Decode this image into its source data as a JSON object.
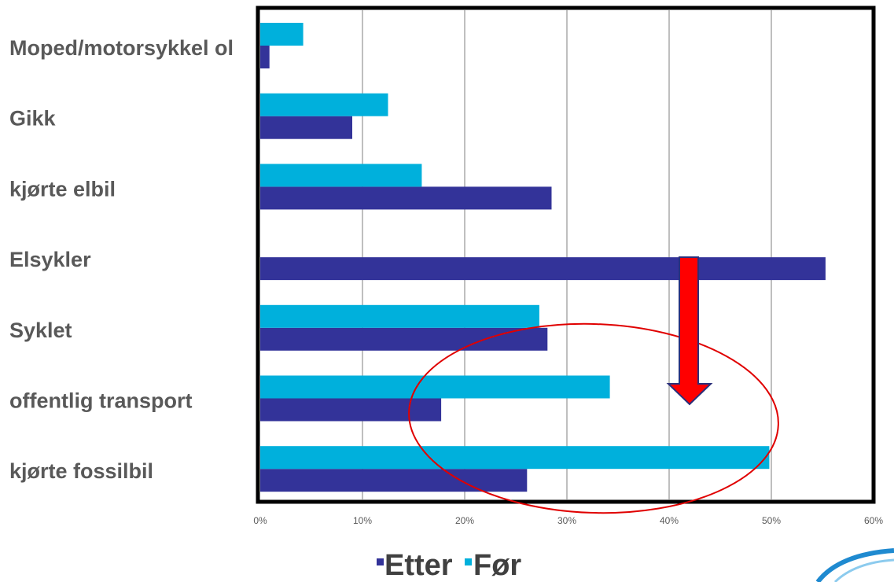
{
  "chart_data": {
    "type": "bar",
    "orientation": "horizontal",
    "categories": [
      "Moped/motorsykkel ol",
      "Gikk",
      "kjørte elbil",
      "Elsykler",
      "Syklet",
      "offentlig transport",
      "kjørte fossilbil"
    ],
    "series": [
      {
        "name": "Etter",
        "color": "#333399",
        "values": [
          0.9,
          9.0,
          28.5,
          55.3,
          28.1,
          17.7,
          26.1
        ]
      },
      {
        "name": "Før",
        "color": "#00B0DC",
        "values": [
          4.2,
          12.5,
          15.8,
          0,
          27.3,
          34.2,
          49.8
        ]
      }
    ],
    "xlim": [
      0,
      60
    ],
    "xticks": [
      0,
      10,
      20,
      30,
      40,
      50,
      60
    ],
    "xtick_labels": [
      "0%",
      "10%",
      "20%",
      "30%",
      "40%",
      "50%",
      "60%"
    ],
    "grid": true,
    "legend_position": "bottom"
  },
  "annotations": {
    "ellipse_color": "#E00000",
    "arrow_fill": "#FF0000",
    "arrow_outline": "#2B2F7A",
    "arrow_direction": "down"
  },
  "colors": {
    "gridline": "#BFBFBF",
    "plot_border": "#000000",
    "logo_blue": "#1F8AD0",
    "logo_light": "#8CCBEE"
  }
}
